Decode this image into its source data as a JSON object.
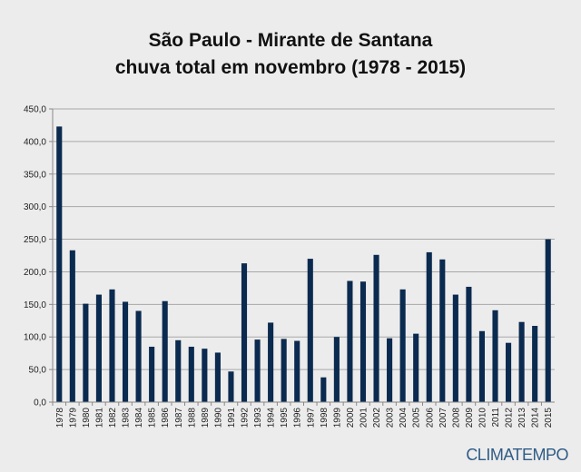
{
  "chart_data": {
    "type": "bar",
    "title": "São Paulo - Mirante de Santana",
    "subtitle": "chuva total em novembro (1978 - 2015)",
    "xlabel": "",
    "ylabel": "",
    "ylim": [
      0,
      450
    ],
    "yticks": [
      "0,0",
      "50,0",
      "100,0",
      "150,0",
      "200,0",
      "250,0",
      "300,0",
      "350,0",
      "400,0",
      "450,0"
    ],
    "grid": true,
    "bar_color": "#0b2a4f",
    "categories": [
      "1978",
      "1979",
      "1980",
      "1981",
      "1982",
      "1983",
      "1984",
      "1985",
      "1986",
      "1987",
      "1988",
      "1989",
      "1990",
      "1991",
      "1992",
      "1993",
      "1994",
      "1995",
      "1996",
      "1997",
      "1998",
      "1999",
      "2000",
      "2001",
      "2002",
      "2003",
      "2004",
      "2005",
      "2006",
      "2007",
      "2008",
      "2009",
      "2010",
      "2011",
      "2012",
      "2013",
      "2014",
      "2015"
    ],
    "values": [
      423,
      233,
      151,
      165,
      173,
      154,
      140,
      85,
      155,
      95,
      85,
      82,
      76,
      47,
      213,
      96,
      122,
      97,
      94,
      220,
      38,
      100,
      186,
      185,
      226,
      98,
      173,
      105,
      230,
      219,
      165,
      177,
      109,
      141,
      91,
      123,
      117,
      250
    ]
  },
  "brand": {
    "logo_text": "CLIMATEMPO",
    "color": "#2f5c86"
  }
}
